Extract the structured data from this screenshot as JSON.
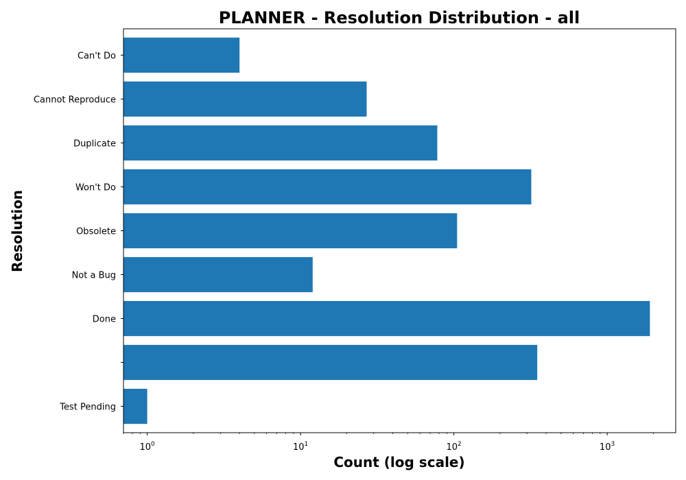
{
  "chart_data": {
    "type": "bar",
    "orientation": "horizontal",
    "title": "PLANNER - Resolution Distribution - all",
    "xlabel": "Count (log scale)",
    "ylabel": "Resolution",
    "xscale": "log",
    "xlim": [
      0.7,
      2800
    ],
    "xticks": [
      {
        "value": 1,
        "base": "10",
        "exp": "0"
      },
      {
        "value": 10,
        "base": "10",
        "exp": "1"
      },
      {
        "value": 100,
        "base": "10",
        "exp": "2"
      },
      {
        "value": 1000,
        "base": "10",
        "exp": "3"
      }
    ],
    "categories": [
      "Can't Do",
      "Cannot Reproduce",
      "Duplicate",
      "Won't Do",
      "Obsolete",
      "Not a Bug",
      "Done",
      "",
      "Test Pending"
    ],
    "values": [
      4,
      27,
      78,
      320,
      105,
      12,
      1900,
      350,
      1
    ],
    "grid": false,
    "legend": "none",
    "colors": {
      "bar": "#1f77b4"
    }
  }
}
